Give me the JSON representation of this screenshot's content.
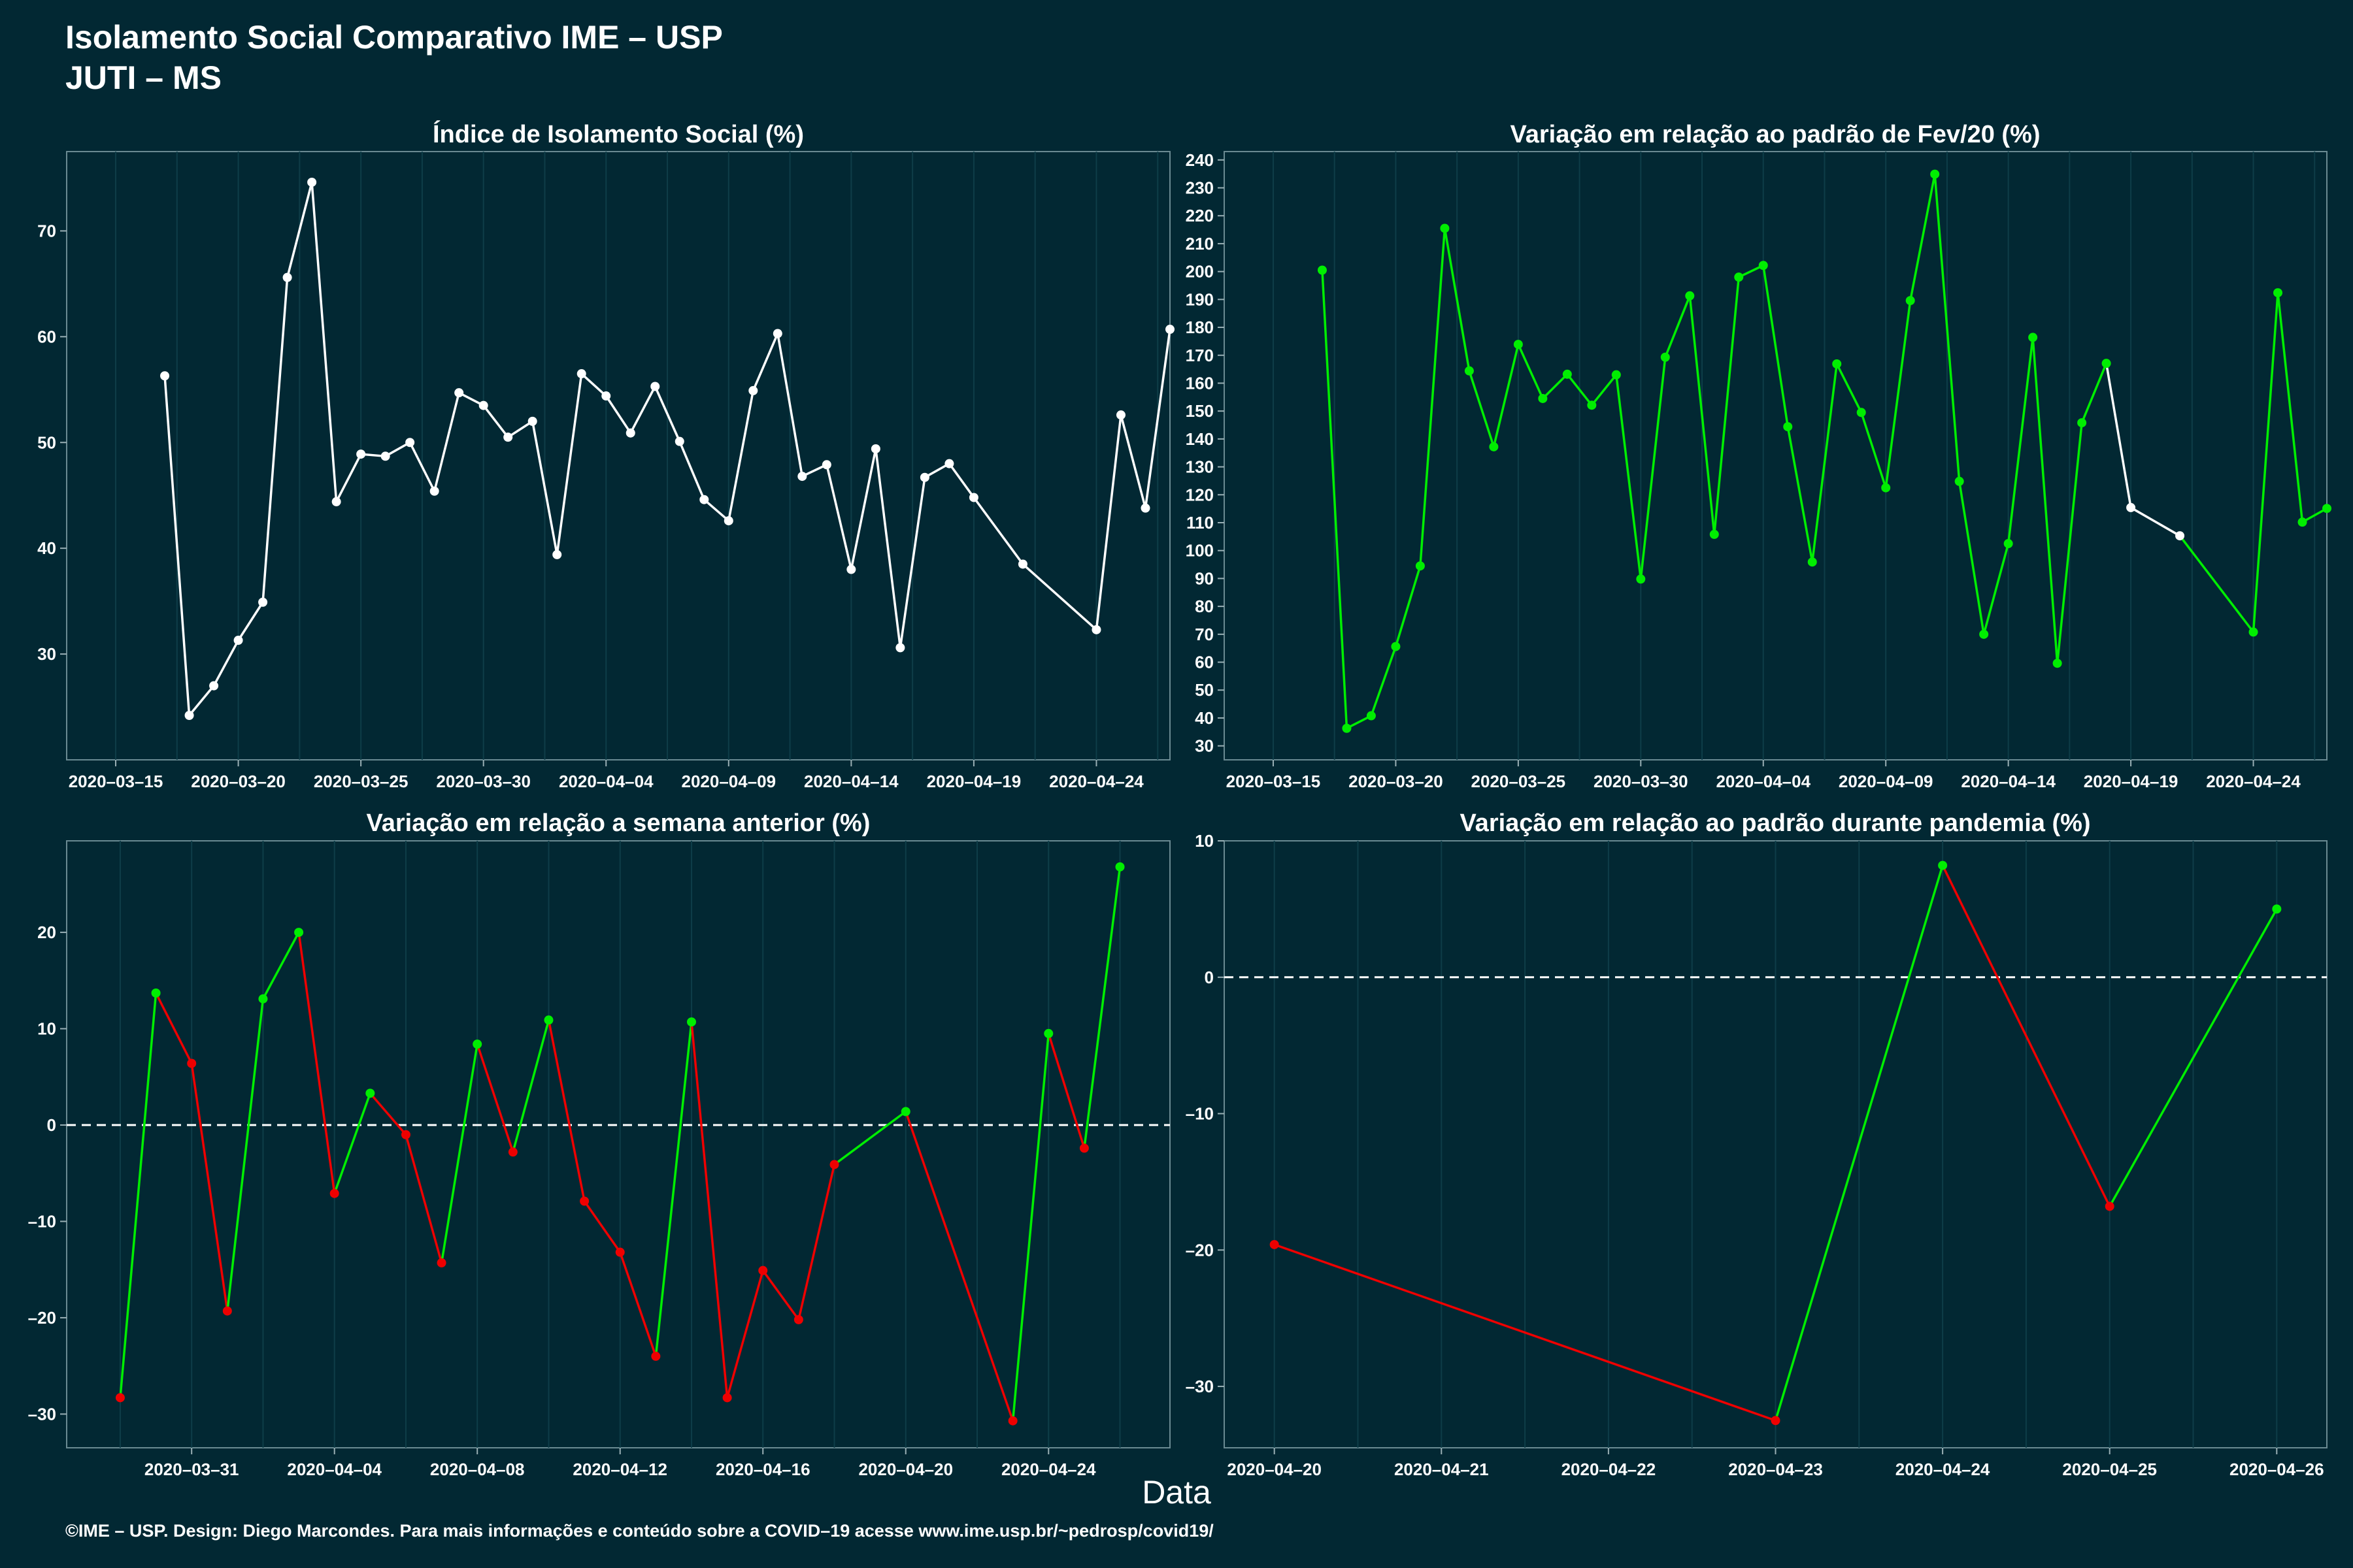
{
  "header": {
    "title": "Isolamento Social Comparativo IME – USP",
    "subtitle": "JUTI – MS"
  },
  "footer": {
    "xlabel": "Data",
    "caption": "©IME – USP. Design: Diego Marcondes. Para mais informações e conteúdo sobre a COVID–19 acesse www.ime.usp.br/~pedrosp/covid19/"
  },
  "colors": {
    "background": "#022833",
    "grid": "#0e3d48",
    "white": "#ffffff",
    "green": "#00ee00",
    "red": "#ee0000"
  },
  "chart_data": [
    {
      "type": "line",
      "title": "Índice de Isolamento Social (%)",
      "xlabel": "",
      "ylabel": "",
      "x_ticks": [
        "2020–03–15",
        "2020–03–20",
        "2020–03–25",
        "2020–03–30",
        "2020–04–04",
        "2020–04–09",
        "2020–04–14",
        "2020–04–19",
        "2020–04–24"
      ],
      "x_tick_pos": [
        0,
        5,
        10,
        15,
        20,
        25,
        30,
        35,
        40
      ],
      "xlim": [
        -2,
        43
      ],
      "y_ticks": [
        "30",
        "40",
        "50",
        "60",
        "70"
      ],
      "ylim": [
        20,
        77.5
      ],
      "grid": true,
      "x_start": "2020-03-15",
      "points": [
        {
          "x": "2020-03-17",
          "y": 56.3,
          "color": "white"
        },
        {
          "x": "2020-03-18",
          "y": 24.2,
          "color": "white"
        },
        {
          "x": "2020-03-19",
          "y": 27.0,
          "color": "white"
        },
        {
          "x": "2020-03-20",
          "y": 31.3,
          "color": "white"
        },
        {
          "x": "2020-03-21",
          "y": 34.9,
          "color": "white"
        },
        {
          "x": "2020-03-22",
          "y": 65.6,
          "color": "white"
        },
        {
          "x": "2020-03-23",
          "y": 74.6,
          "color": "white"
        },
        {
          "x": "2020-03-24",
          "y": 44.4,
          "color": "white"
        },
        {
          "x": "2020-03-25",
          "y": 48.9,
          "color": "white"
        },
        {
          "x": "2020-03-26",
          "y": 48.7,
          "color": "white"
        },
        {
          "x": "2020-03-27",
          "y": 50.0,
          "color": "white"
        },
        {
          "x": "2020-03-28",
          "y": 45.4,
          "color": "white"
        },
        {
          "x": "2020-03-29",
          "y": 54.7,
          "color": "white"
        },
        {
          "x": "2020-03-30",
          "y": 53.5,
          "color": "white"
        },
        {
          "x": "2020-03-31",
          "y": 50.5,
          "color": "white"
        },
        {
          "x": "2020-04-01",
          "y": 52.0,
          "color": "white"
        },
        {
          "x": "2020-04-02",
          "y": 39.4,
          "color": "white"
        },
        {
          "x": "2020-04-03",
          "y": 56.5,
          "color": "white"
        },
        {
          "x": "2020-04-04",
          "y": 54.4,
          "color": "white"
        },
        {
          "x": "2020-04-05",
          "y": 50.9,
          "color": "white"
        },
        {
          "x": "2020-04-06",
          "y": 55.3,
          "color": "white"
        },
        {
          "x": "2020-04-07",
          "y": 50.1,
          "color": "white"
        },
        {
          "x": "2020-04-08",
          "y": 44.6,
          "color": "white"
        },
        {
          "x": "2020-04-09",
          "y": 42.6,
          "color": "white"
        },
        {
          "x": "2020-04-10",
          "y": 54.9,
          "color": "white"
        },
        {
          "x": "2020-04-11",
          "y": 60.3,
          "color": "white"
        },
        {
          "x": "2020-04-12",
          "y": 46.8,
          "color": "white"
        },
        {
          "x": "2020-04-13",
          "y": 47.9,
          "color": "white"
        },
        {
          "x": "2020-04-14",
          "y": 38.0,
          "color": "white"
        },
        {
          "x": "2020-04-15",
          "y": 49.4,
          "color": "white"
        },
        {
          "x": "2020-04-16",
          "y": 30.6,
          "color": "white"
        },
        {
          "x": "2020-04-17",
          "y": 46.7,
          "color": "white"
        },
        {
          "x": "2020-04-18",
          "y": 48.0,
          "color": "white"
        },
        {
          "x": "2020-04-19",
          "y": 44.8,
          "color": "white"
        },
        {
          "x": "2020-04-21",
          "y": 38.5,
          "color": "white"
        },
        {
          "x": "2020-04-24",
          "y": 32.3,
          "color": "white"
        },
        {
          "x": "2020-04-25",
          "y": 52.6,
          "color": "white"
        },
        {
          "x": "2020-04-26",
          "y": 43.8,
          "color": "white"
        },
        {
          "x": "2020-04-27",
          "y": 60.7,
          "color": "white"
        }
      ]
    },
    {
      "type": "line",
      "title": "Variação em relação ao padrão de Fev/20 (%)",
      "xlabel": "",
      "ylabel": "",
      "x_ticks": [
        "2020–03–15",
        "2020–03–20",
        "2020–03–25",
        "2020–03–30",
        "2020–04–04",
        "2020–04–09",
        "2020–04–14",
        "2020–04–19",
        "2020–04–24"
      ],
      "x_tick_pos": [
        0,
        5,
        10,
        15,
        20,
        25,
        30,
        35,
        40
      ],
      "xlim": [
        -2,
        43
      ],
      "y_ticks": [
        "30",
        "40",
        "50",
        "60",
        "70",
        "80",
        "90",
        "100",
        "110",
        "120",
        "130",
        "140",
        "150",
        "160",
        "170",
        "180",
        "190",
        "200",
        "210",
        "220",
        "230",
        "240"
      ],
      "ylim": [
        25,
        243
      ],
      "grid": true,
      "x_start": "2020-03-15",
      "points": [
        {
          "x": "2020-03-17",
          "y": 200.5,
          "color": "green"
        },
        {
          "x": "2020-03-18",
          "y": 36.3,
          "color": "green"
        },
        {
          "x": "2020-03-19",
          "y": 40.8,
          "color": "green"
        },
        {
          "x": "2020-03-20",
          "y": 65.6,
          "color": "green"
        },
        {
          "x": "2020-03-21",
          "y": 94.5,
          "color": "green"
        },
        {
          "x": "2020-03-22",
          "y": 215.5,
          "color": "green"
        },
        {
          "x": "2020-03-23",
          "y": 164.4,
          "color": "green"
        },
        {
          "x": "2020-03-24",
          "y": 137.2,
          "color": "green"
        },
        {
          "x": "2020-03-25",
          "y": 173.9,
          "color": "green"
        },
        {
          "x": "2020-03-26",
          "y": 154.5,
          "color": "green"
        },
        {
          "x": "2020-03-27",
          "y": 163.2,
          "color": "green"
        },
        {
          "x": "2020-03-28",
          "y": 152.1,
          "color": "green"
        },
        {
          "x": "2020-03-29",
          "y": 163.0,
          "color": "green"
        },
        {
          "x": "2020-03-30",
          "y": 89.8,
          "color": "green"
        },
        {
          "x": "2020-03-31",
          "y": 169.3,
          "color": "green"
        },
        {
          "x": "2020-04-01",
          "y": 191.3,
          "color": "green"
        },
        {
          "x": "2020-04-02",
          "y": 105.8,
          "color": "green"
        },
        {
          "x": "2020-04-03",
          "y": 198.0,
          "color": "green"
        },
        {
          "x": "2020-04-04",
          "y": 202.2,
          "color": "green"
        },
        {
          "x": "2020-04-05",
          "y": 144.4,
          "color": "green"
        },
        {
          "x": "2020-04-06",
          "y": 95.9,
          "color": "green"
        },
        {
          "x": "2020-04-07",
          "y": 166.9,
          "color": "green"
        },
        {
          "x": "2020-04-08",
          "y": 149.5,
          "color": "green"
        },
        {
          "x": "2020-04-09",
          "y": 122.5,
          "color": "green"
        },
        {
          "x": "2020-04-10",
          "y": 189.6,
          "color": "green"
        },
        {
          "x": "2020-04-11",
          "y": 234.9,
          "color": "green"
        },
        {
          "x": "2020-04-12",
          "y": 124.8,
          "color": "green"
        },
        {
          "x": "2020-04-13",
          "y": 70.0,
          "color": "green"
        },
        {
          "x": "2020-04-14",
          "y": 102.5,
          "color": "green"
        },
        {
          "x": "2020-04-15",
          "y": 176.4,
          "color": "green"
        },
        {
          "x": "2020-04-16",
          "y": 59.6,
          "color": "green"
        },
        {
          "x": "2020-04-17",
          "y": 145.8,
          "color": "green"
        },
        {
          "x": "2020-04-18",
          "y": 167.1,
          "color": "green"
        },
        {
          "x": "2020-04-19",
          "y": 115.4,
          "color": "white"
        },
        {
          "x": "2020-04-21",
          "y": 105.3,
          "color": "white"
        },
        {
          "x": "2020-04-24",
          "y": 70.8,
          "color": "green"
        },
        {
          "x": "2020-04-25",
          "y": 192.4,
          "color": "green"
        },
        {
          "x": "2020-04-26",
          "y": 110.2,
          "color": "green"
        },
        {
          "x": "2020-04-27",
          "y": 115.1,
          "color": "green"
        }
      ]
    },
    {
      "type": "line",
      "title": "Variação em relação a semana anterior (%)",
      "xlabel": "",
      "ylabel": "",
      "x_ticks": [
        "2020–03–31",
        "2020–04–04",
        "2020–04–08",
        "2020–04–12",
        "2020–04–16",
        "2020–04–20",
        "2020–04–24"
      ],
      "x_tick_pos": [
        0,
        4,
        8,
        12,
        16,
        20,
        24
      ],
      "xlim": [
        -3.5,
        27.4
      ],
      "y_ticks": [
        "–30",
        "–20",
        "–10",
        "0",
        "10",
        "20"
      ],
      "ylim": [
        -33.5,
        29.5
      ],
      "zero_line": true,
      "grid": true,
      "x_start": "2020-03-31",
      "points": [
        {
          "x": "2020-03-29",
          "y": -28.3,
          "color": "red"
        },
        {
          "x": "2020-03-30",
          "y": 13.7,
          "color": "green"
        },
        {
          "x": "2020-03-31",
          "y": 6.4,
          "color": "red"
        },
        {
          "x": "2020-04-01",
          "y": -19.3,
          "color": "red"
        },
        {
          "x": "2020-04-02",
          "y": 13.1,
          "color": "green"
        },
        {
          "x": "2020-04-03",
          "y": 20.0,
          "color": "green"
        },
        {
          "x": "2020-04-04",
          "y": -7.1,
          "color": "red"
        },
        {
          "x": "2020-04-05",
          "y": 3.3,
          "color": "green"
        },
        {
          "x": "2020-04-06",
          "y": -1.0,
          "color": "red"
        },
        {
          "x": "2020-04-07",
          "y": -14.3,
          "color": "red"
        },
        {
          "x": "2020-04-08",
          "y": 8.4,
          "color": "green"
        },
        {
          "x": "2020-04-09",
          "y": -2.8,
          "color": "red"
        },
        {
          "x": "2020-04-10",
          "y": 10.9,
          "color": "green"
        },
        {
          "x": "2020-04-11",
          "y": -7.9,
          "color": "red"
        },
        {
          "x": "2020-04-12",
          "y": -13.2,
          "color": "red"
        },
        {
          "x": "2020-04-13",
          "y": -24.0,
          "color": "red"
        },
        {
          "x": "2020-04-14",
          "y": 10.7,
          "color": "green"
        },
        {
          "x": "2020-04-15",
          "y": -28.3,
          "color": "red"
        },
        {
          "x": "2020-04-16",
          "y": -15.1,
          "color": "red"
        },
        {
          "x": "2020-04-17",
          "y": -20.2,
          "color": "red"
        },
        {
          "x": "2020-04-18",
          "y": -4.1,
          "color": "red"
        },
        {
          "x": "2020-04-20",
          "y": 1.4,
          "color": "green"
        },
        {
          "x": "2020-04-23",
          "y": -30.7,
          "color": "red"
        },
        {
          "x": "2020-04-24",
          "y": 9.5,
          "color": "green"
        },
        {
          "x": "2020-04-25",
          "y": -2.4,
          "color": "red"
        },
        {
          "x": "2020-04-26",
          "y": 26.8,
          "color": "green"
        }
      ]
    },
    {
      "type": "line",
      "title": "Variação em relação ao padrão durante pandemia (%)",
      "xlabel": "",
      "ylabel": "",
      "x_ticks": [
        "2020–04–20",
        "2020–04–21",
        "2020–04–22",
        "2020–04–23",
        "2020–04–24",
        "2020–04–25",
        "2020–04–26"
      ],
      "x_tick_pos": [
        0,
        1,
        2,
        3,
        4,
        5,
        6
      ],
      "xlim": [
        -0.3,
        6.3
      ],
      "y_ticks": [
        "–30",
        "–20",
        "–10",
        "0",
        "10"
      ],
      "ylim": [
        -34.5,
        10
      ],
      "zero_line": true,
      "grid": true,
      "x_start": "2020-04-20",
      "points": [
        {
          "x": "2020-04-20",
          "y": -19.6,
          "color": "red"
        },
        {
          "x": "2020-04-23",
          "y": -32.5,
          "color": "red"
        },
        {
          "x": "2020-04-24",
          "y": 8.2,
          "color": "green"
        },
        {
          "x": "2020-04-25",
          "y": -16.8,
          "color": "red"
        },
        {
          "x": "2020-04-26",
          "y": 5.0,
          "color": "green"
        }
      ]
    }
  ]
}
